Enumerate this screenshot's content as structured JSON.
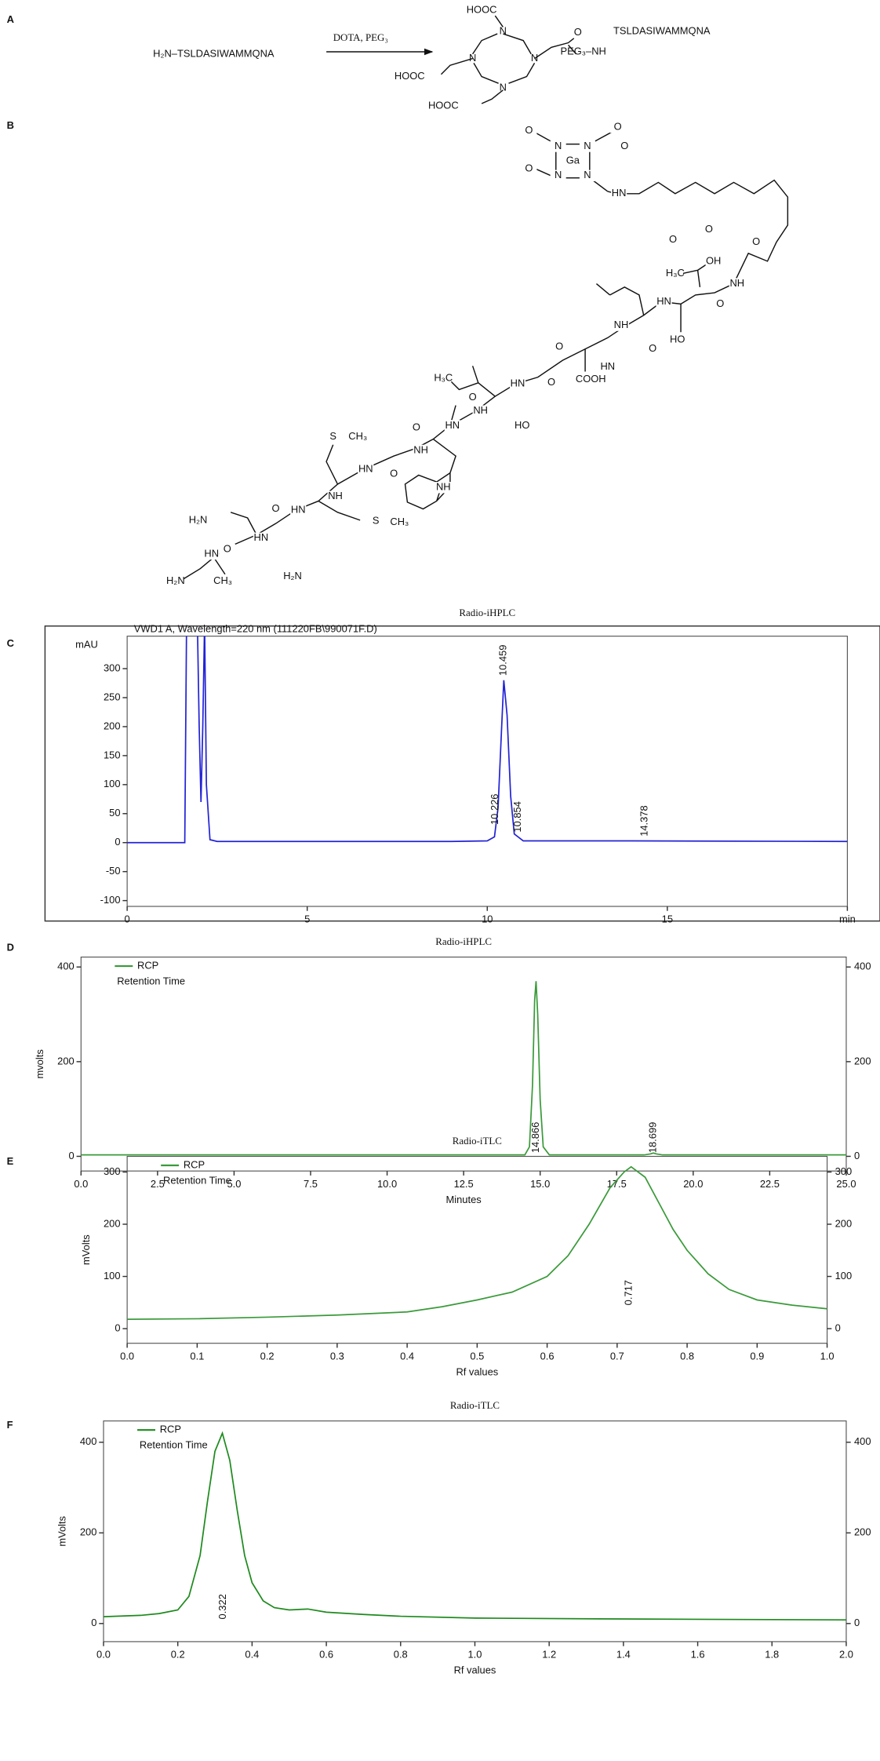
{
  "figure": {
    "panel_labels": [
      "A",
      "B",
      "C",
      "D",
      "E",
      "F"
    ]
  },
  "scheme_a": {
    "reactant": "H₂N–TSLDASIWAMMQNA",
    "reagents": "DOTA, PEG₃",
    "atoms": [
      "HOOC",
      "N",
      "N",
      "N",
      "N",
      "HOOC",
      "HOOC",
      "O",
      "PEG₃–NH",
      "TSLDASIWAMMQNA"
    ]
  },
  "structure_b": {
    "atoms": [
      "Ga",
      "N",
      "N",
      "N",
      "N",
      "O",
      "O",
      "O",
      "O",
      "HN",
      "O",
      "O",
      "O",
      "OH",
      "H₃C",
      "NH",
      "O",
      "HN",
      "HO",
      "NH",
      "O",
      "HN",
      "O",
      "COOH",
      "HN",
      "O",
      "H₃C",
      "HO",
      "NH",
      "O",
      "HN",
      "O",
      "NH",
      "NH",
      "HN",
      "O",
      "S",
      "CH₃",
      "NH",
      "HN",
      "S",
      "CH₃",
      "O",
      "H₂N",
      "HN",
      "O",
      "HN",
      "H₂N",
      "CH₃",
      "H₂N"
    ]
  },
  "chart_data": [
    {
      "type": "line",
      "title": "Radio-iHPLC",
      "ylabel": "mAU",
      "x": [
        0,
        1.5,
        1.6,
        1.65,
        1.75,
        1.85,
        1.95,
        2.0,
        2.05,
        2.1,
        2.15,
        2.2,
        2.3,
        2.5,
        9.0,
        10.0,
        10.2,
        10.3,
        10.4,
        10.459,
        10.55,
        10.65,
        10.75,
        11.0,
        14.0,
        20
      ],
      "series": [
        {
          "name": "VWD1 A, Wavelength=220 nm (111220FB\\990071F.D)",
          "color": "#2323d6",
          "values": [
            0,
            0,
            0,
            380,
            380,
            380,
            380,
            200,
            70,
            200,
            380,
            100,
            5,
            2,
            2,
            3,
            10,
            60,
            200,
            280,
            220,
            80,
            15,
            3,
            3,
            2
          ]
        }
      ],
      "xlim": [
        0,
        20
      ],
      "xticks": [
        0,
        5,
        10,
        15,
        {
          "value": 20,
          "label": "min"
        }
      ],
      "ylim": [
        -110,
        356
      ],
      "yticks": [
        -100,
        -50,
        0,
        50,
        100,
        150,
        200,
        250,
        300
      ],
      "peak_labels": [
        10.226,
        10.459,
        10.854,
        14.378
      ]
    },
    {
      "type": "line",
      "title": "Radio-iHPLC",
      "xlabel": "Minutes",
      "ylabel": "mvolts",
      "annotation": "Retention Time",
      "x": [
        0,
        10,
        14.5,
        14.65,
        14.75,
        14.82,
        14.866,
        14.92,
        15.0,
        15.1,
        15.3,
        18.4,
        18.6,
        18.699,
        18.8,
        19.0,
        25
      ],
      "series": [
        {
          "name": "RCP",
          "color": "#3a9a3a",
          "values": [
            3,
            3,
            3,
            20,
            150,
            330,
            370,
            300,
            120,
            20,
            3,
            3,
            5,
            7,
            5,
            3,
            3
          ]
        }
      ],
      "xlim": [
        0,
        25
      ],
      "xticks": [
        {
          "value": 0,
          "label": "0.0"
        },
        2.5,
        {
          "value": 5,
          "label": "5.0"
        },
        7.5,
        {
          "value": 10,
          "label": "10.0"
        },
        12.5,
        {
          "value": 15,
          "label": "15.0"
        },
        17.5,
        {
          "value": 20,
          "label": "20.0"
        },
        22.5,
        {
          "value": 25,
          "label": "25.0"
        }
      ],
      "ylim": [
        -31,
        421
      ],
      "yticks": [
        0,
        200,
        400
      ],
      "y2lim": [
        -31,
        421
      ],
      "y2ticks": [
        0,
        200,
        400
      ],
      "peak_labels": [
        14.866,
        18.699
      ]
    },
    {
      "type": "line",
      "title": "Radio-iTLC",
      "xlabel": "Rf values",
      "ylabel": "mVolts",
      "annotation": "Retention Time",
      "x": [
        0,
        0.1,
        0.2,
        0.3,
        0.4,
        0.45,
        0.5,
        0.55,
        0.6,
        0.63,
        0.66,
        0.69,
        0.71,
        0.72,
        0.74,
        0.76,
        0.78,
        0.8,
        0.83,
        0.86,
        0.9,
        0.95,
        1.0
      ],
      "series": [
        {
          "name": "RCP",
          "color": "#3a9a3a",
          "values": [
            18,
            19,
            22,
            26,
            32,
            42,
            55,
            70,
            100,
            140,
            200,
            270,
            300,
            310,
            290,
            240,
            190,
            150,
            105,
            75,
            55,
            45,
            38
          ]
        }
      ],
      "xlim": [
        0,
        1
      ],
      "xticks": [
        {
          "value": 0,
          "label": "0.0"
        },
        0.1,
        0.2,
        0.3,
        0.4,
        0.5,
        0.6,
        0.7,
        0.8,
        0.9,
        {
          "value": 1,
          "label": "1.0"
        }
      ],
      "ylim": [
        -28,
        330
      ],
      "yticks": [
        0,
        100,
        200,
        300
      ],
      "y2lim": [
        -28,
        330
      ],
      "y2ticks": [
        0,
        100,
        200,
        300
      ],
      "peak_labels": [
        0.717
      ]
    },
    {
      "type": "line",
      "title": "Radio-iTLC",
      "xlabel": "Rf values",
      "ylabel": "mVolts",
      "annotation": "Retention Time",
      "x": [
        0,
        0.1,
        0.15,
        0.2,
        0.23,
        0.26,
        0.28,
        0.3,
        0.32,
        0.34,
        0.36,
        0.38,
        0.4,
        0.43,
        0.46,
        0.5,
        0.55,
        0.6,
        0.7,
        0.8,
        1.0,
        1.4,
        2.0
      ],
      "series": [
        {
          "name": "RCP",
          "color": "#1e8a1e",
          "values": [
            15,
            18,
            22,
            30,
            60,
            150,
            270,
            380,
            420,
            360,
            250,
            150,
            90,
            50,
            35,
            30,
            32,
            25,
            20,
            16,
            12,
            10,
            8
          ]
        }
      ],
      "xlim": [
        0,
        2
      ],
      "xticks": [
        {
          "value": 0,
          "label": "0.0"
        },
        0.2,
        0.4,
        0.6,
        0.8,
        {
          "value": 1,
          "label": "1.0"
        },
        1.2,
        1.4,
        1.6,
        1.8,
        {
          "value": 2,
          "label": "2.0"
        }
      ],
      "ylim": [
        -40,
        447
      ],
      "yticks": [
        0,
        200,
        400
      ],
      "y2lim": [
        -40,
        447
      ],
      "y2ticks": [
        0,
        200,
        400
      ],
      "peak_labels": [
        0.322
      ]
    }
  ]
}
